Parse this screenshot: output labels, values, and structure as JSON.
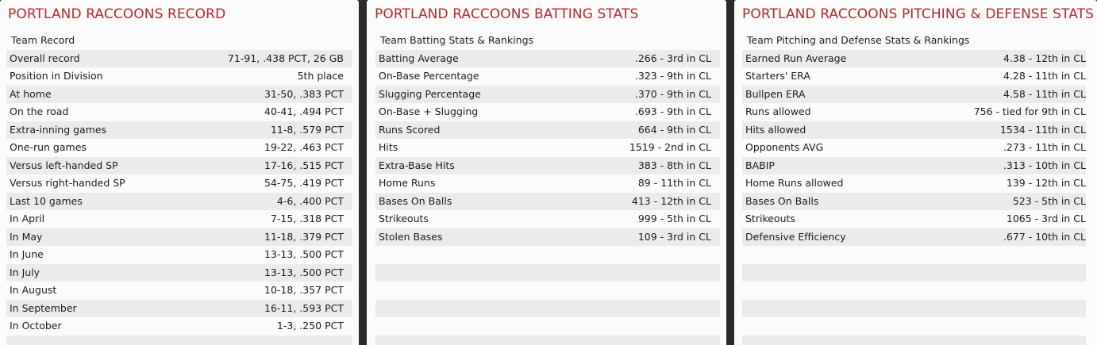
{
  "record": {
    "title": "PORTLAND RACCOONS RECORD",
    "header": "Team Record",
    "rows": [
      {
        "label": "Overall record",
        "value": "71-91, .438 PCT, 26 GB"
      },
      {
        "label": "Position in Division",
        "value": "5th place"
      },
      {
        "label": "At home",
        "value": "31-50, .383 PCT"
      },
      {
        "label": "On the road",
        "value": "40-41, .494 PCT"
      },
      {
        "label": "Extra-inning games",
        "value": "11-8, .579 PCT"
      },
      {
        "label": "One-run games",
        "value": "19-22, .463 PCT"
      },
      {
        "label": "Versus left-handed SP",
        "value": "17-16, .515 PCT"
      },
      {
        "label": "Versus right-handed SP",
        "value": "54-75, .419 PCT"
      },
      {
        "label": "Last 10 games",
        "value": "4-6, .400 PCT"
      },
      {
        "label": "In April",
        "value": "7-15, .318 PCT"
      },
      {
        "label": "In May",
        "value": "11-18, .379 PCT"
      },
      {
        "label": "In June",
        "value": "13-13, .500 PCT"
      },
      {
        "label": "In July",
        "value": "13-13, .500 PCT"
      },
      {
        "label": "In August",
        "value": "10-18, .357 PCT"
      },
      {
        "label": "In September",
        "value": "16-11, .593 PCT"
      },
      {
        "label": "In October",
        "value": "1-3, .250 PCT"
      },
      {
        "label": "",
        "value": ""
      }
    ]
  },
  "batting": {
    "title": "PORTLAND RACCOONS BATTING STATS",
    "header": "Team Batting Stats & Rankings",
    "rows": [
      {
        "label": "Batting Average",
        "value": ".266 - 3rd  in CL"
      },
      {
        "label": "On-Base Percentage",
        "value": ".323 - 9th  in CL"
      },
      {
        "label": "Slugging Percentage",
        "value": ".370 - 9th  in CL"
      },
      {
        "label": "On-Base + Slugging",
        "value": ".693 - 9th  in CL"
      },
      {
        "label": "Runs Scored",
        "value": "664 - 9th  in CL"
      },
      {
        "label": "Hits",
        "value": "1519 - 2nd  in CL"
      },
      {
        "label": "Extra-Base Hits",
        "value": "383 - 8th  in CL"
      },
      {
        "label": "Home Runs",
        "value": "89 - 11th  in CL"
      },
      {
        "label": "Bases On Balls",
        "value": "413 - 12th  in CL"
      },
      {
        "label": "Strikeouts",
        "value": "999 - 5th  in CL"
      },
      {
        "label": "Stolen Bases",
        "value": "109 - 3rd  in CL"
      },
      {
        "label": "",
        "value": ""
      },
      {
        "label": "",
        "value": ""
      },
      {
        "label": "",
        "value": ""
      },
      {
        "label": "",
        "value": ""
      },
      {
        "label": "",
        "value": ""
      },
      {
        "label": "",
        "value": ""
      }
    ]
  },
  "pitching": {
    "title": "PORTLAND RACCOONS PITCHING & DEFENSE STATS",
    "header": "Team Pitching and Defense Stats & Rankings",
    "rows": [
      {
        "label": "Earned Run Average",
        "value": "4.38 - 12th  in CL"
      },
      {
        "label": "Starters' ERA",
        "value": "4.28 - 11th  in CL"
      },
      {
        "label": "Bullpen ERA",
        "value": "4.58 - 11th  in CL"
      },
      {
        "label": "Runs allowed",
        "value": "756 -  tied for 9th  in CL"
      },
      {
        "label": "Hits allowed",
        "value": "1534 - 11th  in CL"
      },
      {
        "label": "Opponents AVG",
        "value": ".273 - 11th  in CL"
      },
      {
        "label": "BABIP",
        "value": ".313 - 10th  in CL"
      },
      {
        "label": "Home Runs allowed",
        "value": "139 - 12th  in CL"
      },
      {
        "label": "Bases On Balls",
        "value": "523 - 5th  in CL"
      },
      {
        "label": "Strikeouts",
        "value": "1065 - 3rd  in CL"
      },
      {
        "label": "Defensive Efficiency",
        "value": ".677 - 10th  in CL"
      },
      {
        "label": "",
        "value": ""
      },
      {
        "label": "",
        "value": ""
      },
      {
        "label": "",
        "value": ""
      },
      {
        "label": "",
        "value": ""
      },
      {
        "label": "",
        "value": ""
      },
      {
        "label": "",
        "value": ""
      }
    ]
  }
}
